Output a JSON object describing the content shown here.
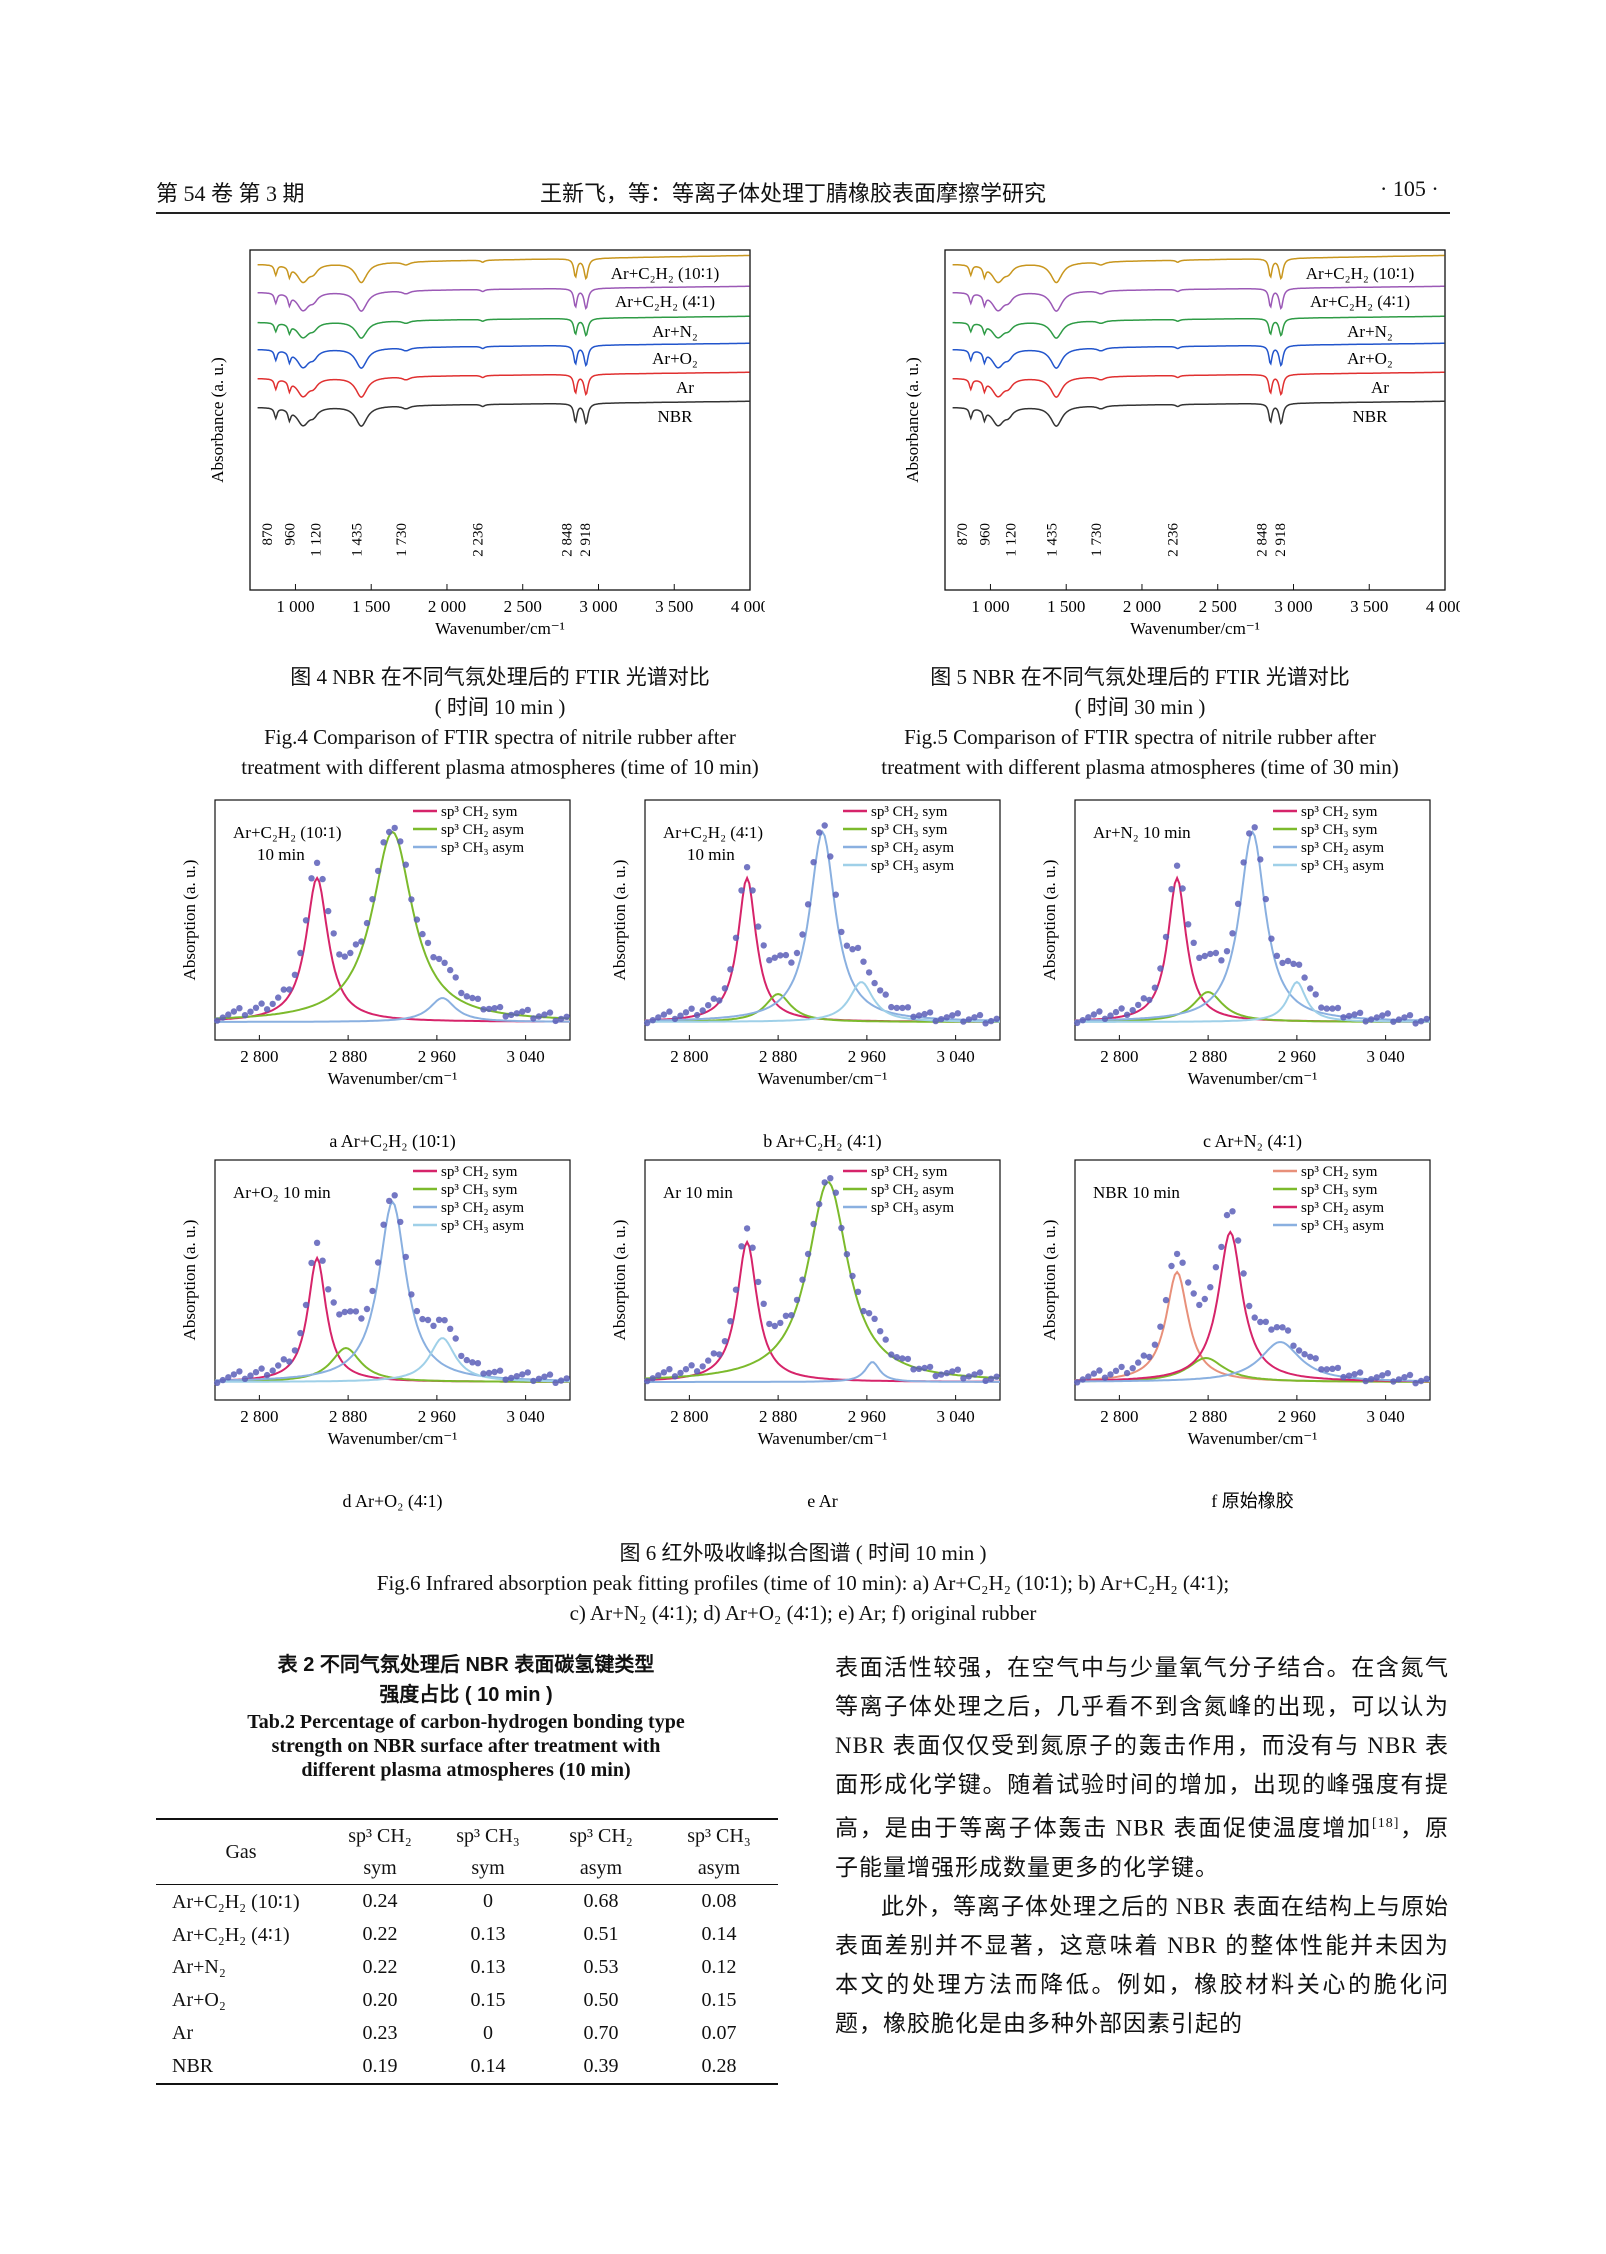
{
  "header": {
    "left": "第 54 卷   第 3 期",
    "center": "王新飞，等：等离子体处理丁腈橡胶表面摩擦学研究",
    "right": "· 105 ·"
  },
  "fig4": {
    "caption_cn": "图 4    NBR 在不同气氛处理后的 FTIR 光谱对比",
    "caption_cn2": "( 时间 10 min )",
    "caption_en1": "Fig.4 Comparison of FTIR spectra of nitrile rubber after",
    "caption_en2": "treatment with different plasma atmospheres (time of 10 min)",
    "ylabel": "Absorbance (a. u.)",
    "xlabel": "Wavenumber/cm⁻¹",
    "xticks": [
      "1 000",
      "1 500",
      "2 000",
      "2 500",
      "3 000",
      "3 500",
      "4 000"
    ],
    "peak_labels": [
      "870",
      "960",
      "1 120",
      "1 435",
      "1 730",
      "2 236",
      "2 848",
      "2 918"
    ],
    "series": [
      {
        "name": "Ar+C₂H₂ (10∶1)",
        "color": "#c8961e"
      },
      {
        "name": "Ar+C₂H₂ (4∶1)",
        "color": "#9b59b6"
      },
      {
        "name": "Ar+N₂",
        "color": "#2e9b45"
      },
      {
        "name": "Ar+O₂",
        "color": "#2255cc"
      },
      {
        "name": "Ar",
        "color": "#e03030"
      },
      {
        "name": "NBR",
        "color": "#333333"
      }
    ]
  },
  "fig5": {
    "caption_cn": "图 5    NBR 在不同气氛处理后的 FTIR 光谱对比",
    "caption_cn2": "( 时间 30 min )",
    "caption_en1": "Fig.5 Comparison of FTIR spectra of nitrile rubber after",
    "caption_en2": "treatment with different plasma atmospheres (time of 30 min)",
    "ylabel": "Absorbance (a. u.)",
    "xlabel": "Wavenumber/cm⁻¹",
    "xticks": [
      "1 000",
      "1 500",
      "2 000",
      "2 500",
      "3 000",
      "3 500",
      "4 000"
    ],
    "peak_labels": [
      "870",
      "960",
      "1 120",
      "1 435",
      "1 730",
      "2 236",
      "2 848",
      "2 918"
    ],
    "series": [
      {
        "name": "Ar+C₂H₂ (10∶1)",
        "color": "#c8961e"
      },
      {
        "name": "Ar+C₂H₂ (4∶1)",
        "color": "#9b59b6"
      },
      {
        "name": "Ar+N₂",
        "color": "#2e9b45"
      },
      {
        "name": "Ar+O₂",
        "color": "#2255cc"
      },
      {
        "name": "Ar",
        "color": "#e03030"
      },
      {
        "name": "NBR",
        "color": "#333333"
      }
    ]
  },
  "fig6": {
    "caption_cn": "图 6    红外吸收峰拟合图谱 ( 时间 10 min )",
    "caption_en1": "Fig.6 Infrared absorption peak fitting profiles (time of 10 min): a) Ar+C₂H₂ (10∶1); b) Ar+C₂H₂ (4∶1);",
    "caption_en2": "c) Ar+N₂ (4∶1); d) Ar+O₂ (4∶1); e) Ar; f) original rubber",
    "ylabel": "Absorption (a. u.)",
    "xlabel": "Wavenumber/cm⁻¹",
    "xticks": [
      "2 800",
      "2 880",
      "2 960",
      "3 040"
    ],
    "panels": [
      {
        "label": "a  Ar+C₂H₂ (10∶1)",
        "tag1": "Ar+C₂H₂ (10∶1)",
        "tag2": "10 min",
        "legend": [
          "sp³ CH₂ sym",
          "sp³ CH₂ asym",
          "sp³ CH₃ asym"
        ],
        "colors": [
          "#d6246a",
          "#7cba2c",
          "#8ab0e0"
        ]
      },
      {
        "label": "b  Ar+C₂H₂ (4∶1)",
        "tag1": "Ar+C₂H₂ (4∶1)",
        "tag2": "10 min",
        "legend": [
          "sp³ CH₂ sym",
          "sp³ CH₃ sym",
          "sp³ CH₂ asym",
          "sp³ CH₃ asym"
        ],
        "colors": [
          "#d6246a",
          "#7cba2c",
          "#8ab0e0",
          "#9fd0e8"
        ]
      },
      {
        "label": "c  Ar+N₂ (4∶1)",
        "tag1": "Ar+N₂ 10 min",
        "tag2": "",
        "legend": [
          "sp³ CH₂ sym",
          "sp³ CH₃ sym",
          "sp³ CH₂ asym",
          "sp³ CH₃ asym"
        ],
        "colors": [
          "#d6246a",
          "#7cba2c",
          "#8ab0e0",
          "#9fd0e8"
        ]
      },
      {
        "label": "d  Ar+O₂ (4∶1)",
        "tag1": "Ar+O₂ 10 min",
        "tag2": "",
        "legend": [
          "sp³ CH₂ sym",
          "sp³ CH₃ sym",
          "sp³ CH₂ asym",
          "sp³ CH₃ asym"
        ],
        "colors": [
          "#d6246a",
          "#7cba2c",
          "#8ab0e0",
          "#9fd0e8"
        ]
      },
      {
        "label": "e  Ar",
        "tag1": "Ar 10 min",
        "tag2": "",
        "legend": [
          "sp³ CH₂ sym",
          "sp³ CH₂ asym",
          "sp³ CH₃ asym"
        ],
        "colors": [
          "#d6246a",
          "#7cba2c",
          "#8ab0e0"
        ]
      },
      {
        "label": "f  原始橡胶",
        "tag1": "NBR 10 min",
        "tag2": "",
        "legend": [
          "sp³ CH₂ sym",
          "sp³ CH₃ sym",
          "sp³ CH₂ asym",
          "sp³ CH₃ asym"
        ],
        "colors": [
          "#d6246a",
          "#7cba2c",
          "#8ab0e0",
          "#9fd0e8"
        ]
      }
    ]
  },
  "table2": {
    "title_cn1": "表 2    不同气氛处理后 NBR 表面碳氢键类型",
    "title_cn2": "强度占比 ( 10 min )",
    "title_en1": "Tab.2 Percentage of carbon-hydrogen bonding type",
    "title_en2": "strength on NBR surface after treatment with",
    "title_en3": "different plasma atmospheres (10 min)",
    "columns": [
      "Gas",
      "sp³ CH₂ sym",
      "sp³ CH₃ sym",
      "sp³ CH₂ asym",
      "sp³ CH₃ asym"
    ],
    "col_line1": [
      "sp³ CH₂",
      "sp³ CH₃",
      "sp³ CH₂",
      "sp³ CH₃"
    ],
    "col_line2": [
      "sym",
      "sym",
      "asym",
      "asym"
    ],
    "rows": [
      [
        "Ar+C₂H₂ (10∶1)",
        "0.24",
        "0",
        "0.68",
        "0.08"
      ],
      [
        "Ar+C₂H₂ (4∶1)",
        "0.22",
        "0.13",
        "0.51",
        "0.14"
      ],
      [
        "Ar+N₂",
        "0.22",
        "0.13",
        "0.53",
        "0.12"
      ],
      [
        "Ar+O₂",
        "0.20",
        "0.15",
        "0.50",
        "0.15"
      ],
      [
        "Ar",
        "0.23",
        "0",
        "0.70",
        "0.07"
      ],
      [
        "NBR",
        "0.19",
        "0.14",
        "0.39",
        "0.28"
      ]
    ]
  },
  "body": {
    "p1": "表面活性较强，在空气中与少量氧气分子结合。在含氮气等离子体处理之后，几乎看不到含氮峰的出现，可以认为 NBR 表面仅仅受到氮原子的轰击作用，而没有与 NBR 表面形成化学键。随着试验时间的增加，出现的峰强度有提高，是由于等离子体轰击 NBR 表面促使温度增加",
    "p1_ref": "[18]",
    "p1_end": "，原子能量增强形成数量更多的化学键。",
    "p2": "此外，等离子体处理之后的 NBR 表面在结构上与原始表面差别并不显著，这意味着 NBR 的整体性能并未因为本文的处理方法而降低。例如，橡胶材料关心的脆化问题，橡胶脆化是由多种外部因素引起的"
  },
  "chart_data": [
    {
      "type": "line",
      "title": "",
      "xlabel": "Wavenumber/cm⁻¹",
      "ylabel": "Absorbance (a. u.)",
      "xlim": [
        700,
        4000
      ],
      "series": [
        {
          "name": "Ar+C₂H₂ (10∶1)"
        },
        {
          "name": "Ar+C₂H₂ (4∶1)"
        },
        {
          "name": "Ar+N₂"
        },
        {
          "name": "Ar+O₂"
        },
        {
          "name": "Ar"
        },
        {
          "name": "NBR"
        }
      ],
      "peaks": [
        870,
        960,
        1120,
        1435,
        1730,
        2236,
        2848,
        2918
      ]
    },
    {
      "type": "bar",
      "title": "",
      "categories": [
        "Ar+C₂H₂ (10∶1)",
        "Ar+C₂H₂ (4∶1)",
        "Ar+N₂",
        "Ar+O₂",
        "Ar",
        "NBR"
      ],
      "series": [
        {
          "name": "sp³ CH₂ sym",
          "values": [
            0.24,
            0.22,
            0.22,
            0.2,
            0.23,
            0.19
          ]
        },
        {
          "name": "sp³ CH₃ sym",
          "values": [
            0,
            0.13,
            0.13,
            0.15,
            0,
            0.14
          ]
        },
        {
          "name": "sp³ CH₂ asym",
          "values": [
            0.68,
            0.51,
            0.53,
            0.5,
            0.7,
            0.39
          ]
        },
        {
          "name": "sp³ CH₃ asym",
          "values": [
            0.08,
            0.14,
            0.12,
            0.15,
            0.07,
            0.28
          ]
        }
      ]
    }
  ]
}
